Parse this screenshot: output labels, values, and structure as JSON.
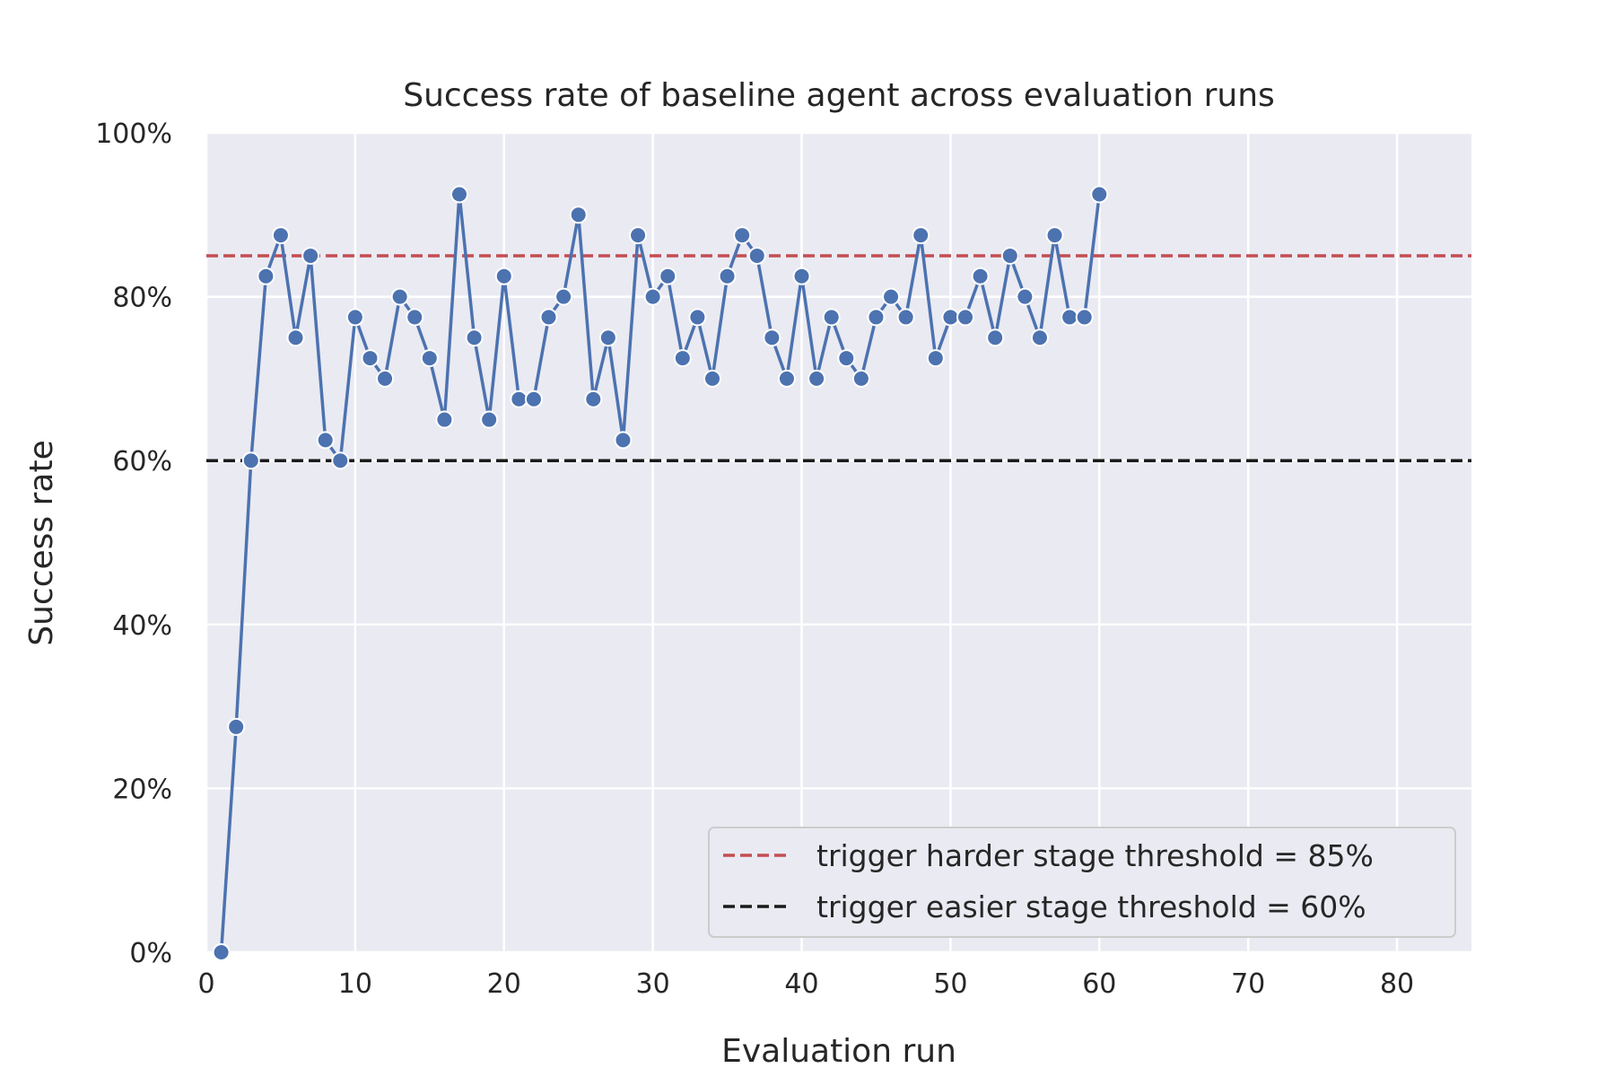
{
  "chart_data": {
    "type": "line",
    "title": "Success rate of baseline agent across evaluation runs",
    "xlabel": "Evaluation run",
    "ylabel": "Success rate",
    "xlim": [
      0,
      85
    ],
    "ylim": [
      0,
      100
    ],
    "xticks": [
      0,
      10,
      20,
      30,
      40,
      50,
      60,
      70,
      80
    ],
    "yticks": [
      0,
      20,
      40,
      60,
      80,
      100
    ],
    "ytick_labels": [
      "0%",
      "20%",
      "40%",
      "60%",
      "80%",
      "100%"
    ],
    "grid": true,
    "legend_position": "bottom-right",
    "colors": {
      "background": "#eaeaf2",
      "grid": "#ffffff",
      "series": "#4c72b0",
      "harder_threshold": "#c44e52",
      "easier_threshold": "#1a1a1a"
    },
    "series": [
      {
        "x": [
          1,
          2,
          3,
          4,
          5,
          6,
          7,
          8,
          9,
          10,
          11,
          12,
          13,
          14,
          15,
          16,
          17,
          18,
          19,
          20,
          21,
          22,
          23,
          24,
          25,
          26,
          27,
          28,
          29,
          30,
          31,
          32,
          33,
          34,
          35,
          36,
          37,
          38,
          39,
          40,
          41,
          42,
          43,
          44,
          45,
          46,
          47,
          48,
          49,
          50,
          51,
          52,
          53,
          54,
          55,
          56,
          57,
          58,
          59,
          60
        ],
        "values": [
          0,
          27.5,
          60,
          82.5,
          87.5,
          75,
          85,
          62.5,
          60,
          77.5,
          72.5,
          70,
          80,
          77.5,
          72.5,
          65,
          92.5,
          75,
          65,
          82.5,
          67.5,
          67.5,
          77.5,
          80,
          90,
          67.5,
          75,
          62.5,
          87.5,
          80,
          82.5,
          72.5,
          77.5,
          70,
          82.5,
          87.5,
          85,
          75,
          70,
          82.5,
          70,
          77.5,
          72.5,
          70,
          77.5,
          80,
          77.5,
          87.5,
          72.5,
          77.5,
          77.5,
          82.5,
          75,
          85,
          80,
          75,
          87.5,
          77.5,
          77.5,
          92.5
        ]
      }
    ],
    "thresholds": [
      {
        "name": "trigger harder stage threshold = 85%",
        "value": 85,
        "style": "dashed"
      },
      {
        "name": "trigger easier stage threshold = 60%",
        "value": 60,
        "style": "dashed"
      }
    ]
  }
}
